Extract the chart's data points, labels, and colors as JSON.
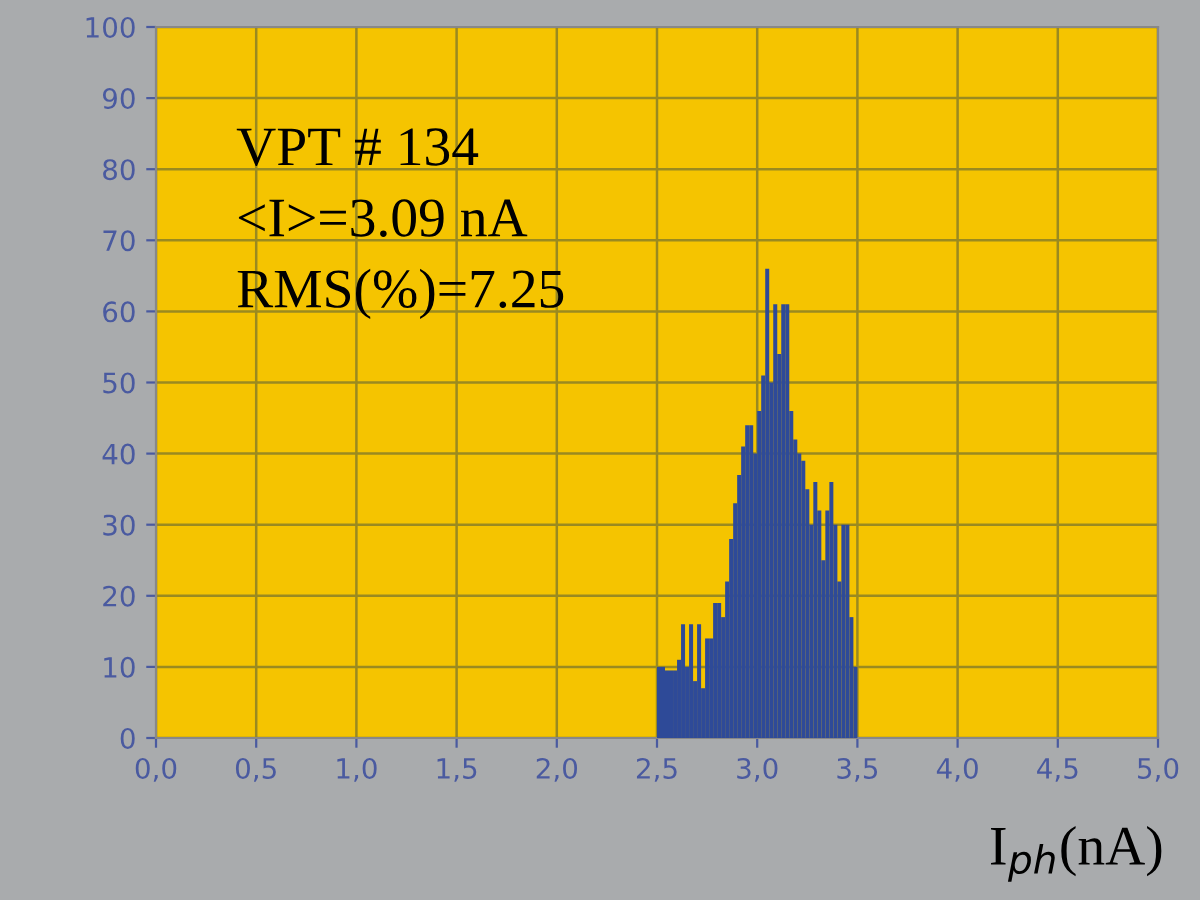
{
  "chart_data": {
    "type": "histogram",
    "bins": [
      2.5,
      2.52,
      2.54,
      2.56,
      2.58,
      2.6,
      2.62,
      2.64,
      2.66,
      2.68,
      2.7,
      2.72,
      2.74,
      2.76,
      2.78,
      2.8,
      2.82,
      2.84,
      2.86,
      2.88,
      2.9,
      2.92,
      2.94,
      2.96,
      2.98,
      3.0,
      3.02,
      3.04,
      3.06,
      3.08,
      3.1,
      3.12,
      3.14,
      3.16,
      3.18,
      3.2,
      3.22,
      3.24,
      3.26,
      3.28,
      3.3,
      3.32,
      3.34,
      3.36,
      3.38,
      3.4,
      3.42,
      3.44,
      3.46,
      3.48,
      3.5
    ],
    "values": [
      10,
      10,
      9.5,
      9.5,
      9.5,
      11,
      16,
      10,
      16,
      8,
      16,
      7,
      14,
      14,
      19,
      19,
      17,
      22,
      28,
      33,
      37,
      41,
      44,
      44,
      40,
      46,
      51,
      66,
      50,
      61,
      54,
      61,
      61,
      46,
      42,
      40,
      39,
      35,
      30,
      36,
      32,
      25,
      32,
      36,
      30,
      22,
      30,
      30,
      17,
      10
    ],
    "color": "#2e4a98",
    "xlabel": "I$_{ph}$(nA)",
    "annotations": [
      "VPT # 134",
      "<I>=3.09 nA",
      "RMS(%)=7.25"
    ],
    "xlim": [
      0,
      5
    ],
    "ylim": [
      0,
      100
    ],
    "xticks": [
      {
        "value": 0,
        "label": "0,0"
      },
      {
        "value": 0.5,
        "label": "0,5"
      },
      {
        "value": 1,
        "label": "1,0"
      },
      {
        "value": 1.5,
        "label": "1,5"
      },
      {
        "value": 2,
        "label": "2,0"
      },
      {
        "value": 2.5,
        "label": "2,5"
      },
      {
        "value": 3,
        "label": "3,0"
      },
      {
        "value": 3.5,
        "label": "3,5"
      },
      {
        "value": 4,
        "label": "4,0"
      },
      {
        "value": 4.5,
        "label": "4,5"
      },
      {
        "value": 5,
        "label": "5,0"
      }
    ],
    "yticks": [
      0,
      10,
      20,
      30,
      40,
      50,
      60,
      70,
      80,
      90,
      100
    ],
    "grid": true
  }
}
